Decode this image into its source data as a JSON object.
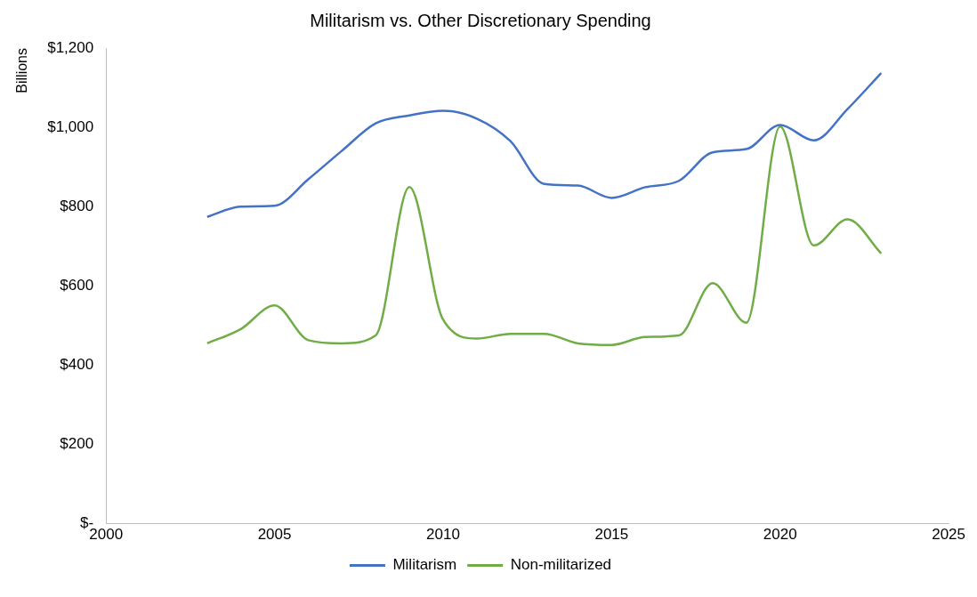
{
  "chart_data": {
    "type": "line",
    "title": "Militarism vs. Other Discretionary Spending",
    "ylabel": "Billions",
    "x": [
      2003,
      2004,
      2005,
      2006,
      2007,
      2008,
      2009,
      2010,
      2011,
      2012,
      2013,
      2014,
      2015,
      2016,
      2017,
      2018,
      2019,
      2020,
      2021,
      2022,
      2023
    ],
    "series": [
      {
        "name": "Militarism",
        "color": "#4472c4",
        "values": [
          774,
          800,
          802,
          869,
          941,
          1010,
          1030,
          1042,
          1022,
          965,
          857,
          853,
          822,
          849,
          865,
          937,
          945,
          1006,
          967,
          1046,
          1137
        ]
      },
      {
        "name": "Non-militarized",
        "color": "#70ad47",
        "values": [
          455,
          491,
          551,
          463,
          455,
          475,
          849,
          515,
          467,
          479,
          479,
          455,
          451,
          471,
          475,
          607,
          507,
          1002,
          702,
          768,
          682
        ]
      }
    ],
    "xlim": [
      2000,
      2025
    ],
    "xticks": [
      2000,
      2005,
      2010,
      2015,
      2020,
      2025
    ],
    "ylim": [
      0,
      1200
    ],
    "yticks": [
      {
        "value": 0,
        "label": "$-"
      },
      {
        "value": 200,
        "label": "$200"
      },
      {
        "value": 400,
        "label": "$400"
      },
      {
        "value": 600,
        "label": "$600"
      },
      {
        "value": 800,
        "label": "$800"
      },
      {
        "value": 1000,
        "label": "$1,000"
      },
      {
        "value": 1200,
        "label": "$1,200"
      }
    ],
    "grid": false,
    "legend": "bottom",
    "marker": "none",
    "line_style": "solid"
  }
}
